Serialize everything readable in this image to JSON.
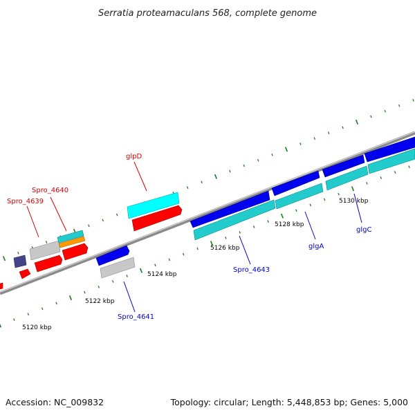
{
  "title": "Serratia proteamaculans 568, complete genome",
  "footer": {
    "accession": "Accession: NC_009832",
    "summary": "Topology: circular; Length: 5,448,853 bp; Genes: 5,000"
  },
  "ticks": [
    "5120 kbp",
    "5122 kbp",
    "5124 kbp",
    "5126 kbp",
    "5128 kbp",
    "5130 kbp"
  ],
  "labels": {
    "glpD": "glpD",
    "spro4640": "Spro_4640",
    "spro4639": "Spro_4639",
    "spro4641": "Spro_4641",
    "spro4643": "Spro_4643",
    "glgA": "glgA",
    "glgC": "glgC"
  },
  "colors": {
    "red": "#ff0000",
    "blue": "#0000ee",
    "cyan": "#00cccc",
    "grey": "#bfbfbf",
    "orange": "#ff9900",
    "purple": "#44448a",
    "backbone": "#808080",
    "tick": "#1a7a1a",
    "label_red": "#d40000",
    "label_blue": "#0000c8"
  }
}
